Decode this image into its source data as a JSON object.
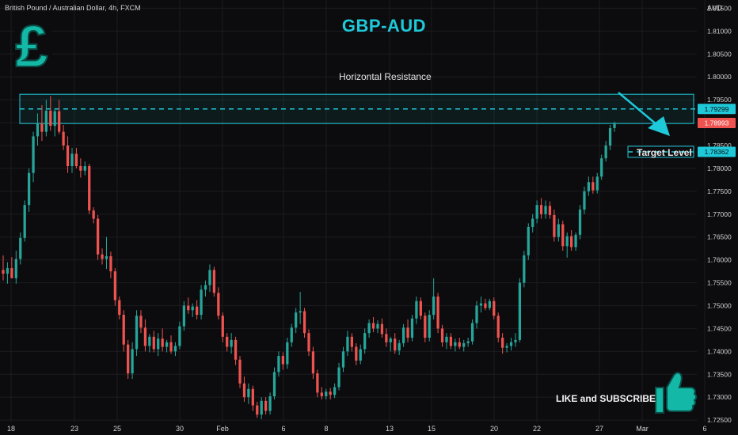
{
  "symbol": {
    "title": "British Pound / Australian Dollar, 4h, FXCM",
    "currency": "AUD"
  },
  "annotations": {
    "title": "GBP-AUD",
    "resistance_label": "Horizontal Resistance",
    "target_label": "Target Level",
    "cta": "LIKE and SUBSCRIBE",
    "logo_icon": "pound-sign-icon",
    "like_icon": "thumbs-up-icon"
  },
  "colors": {
    "background": "#0c0c0e",
    "up": "#26a69a",
    "down": "#ef5350",
    "accent": "#1ec9d9",
    "grid": "#1c1c20"
  },
  "chart_data": {
    "type": "candlestick",
    "title": "GBP-AUD",
    "x_ticks": [
      "18",
      "23",
      "25",
      "30",
      "Feb",
      "6",
      "8",
      "13",
      "15",
      "20",
      "22",
      "27",
      "Mar",
      "6"
    ],
    "y_ticks": [
      1.815,
      1.81,
      1.805,
      1.8,
      1.795,
      1.79,
      1.785,
      1.78,
      1.775,
      1.77,
      1.765,
      1.76,
      1.755,
      1.75,
      1.745,
      1.74,
      1.735,
      1.73,
      1.725
    ],
    "y_tick_labels": [
      "1.81500",
      "1.81000",
      "1.80500",
      "1.80000",
      "1.79500",
      "1.79000",
      "1.78500",
      "1.78000",
      "1.77500",
      "1.77000",
      "1.76500",
      "1.76000",
      "1.75500",
      "1.75000",
      "1.74500",
      "1.74000",
      "1.73500",
      "1.73000",
      "1.72500"
    ],
    "ylim": [
      1.7245,
      1.8168
    ],
    "grid": true,
    "price_labels": [
      {
        "name": "resistance",
        "value": 1.79299,
        "text": "1.79299"
      },
      {
        "name": "last",
        "value": 1.78993,
        "text": "1.78993"
      },
      {
        "name": "target",
        "value": 1.78362,
        "text": "1.78362"
      }
    ],
    "resistance_zone": [
      1.7898,
      1.7962
    ],
    "resistance_level": 1.79299,
    "target_level": 1.78362,
    "candles": [
      {
        "o": 1.7578,
        "h": 1.761,
        "l": 1.7555,
        "c": 1.757
      },
      {
        "o": 1.757,
        "h": 1.7595,
        "l": 1.7548,
        "c": 1.7582
      },
      {
        "o": 1.7582,
        "h": 1.7606,
        "l": 1.756,
        "c": 1.756
      },
      {
        "o": 1.756,
        "h": 1.762,
        "l": 1.7548,
        "c": 1.7602
      },
      {
        "o": 1.7602,
        "h": 1.766,
        "l": 1.759,
        "c": 1.7648
      },
      {
        "o": 1.7648,
        "h": 1.773,
        "l": 1.764,
        "c": 1.772
      },
      {
        "o": 1.772,
        "h": 1.78,
        "l": 1.7705,
        "c": 1.779
      },
      {
        "o": 1.779,
        "h": 1.788,
        "l": 1.777,
        "c": 1.787
      },
      {
        "o": 1.787,
        "h": 1.792,
        "l": 1.785,
        "c": 1.7898
      },
      {
        "o": 1.7898,
        "h": 1.7938,
        "l": 1.786,
        "c": 1.788
      },
      {
        "o": 1.788,
        "h": 1.795,
        "l": 1.787,
        "c": 1.7926
      },
      {
        "o": 1.7926,
        "h": 1.7958,
        "l": 1.7882,
        "c": 1.7893
      },
      {
        "o": 1.7893,
        "h": 1.7932,
        "l": 1.787,
        "c": 1.7925
      },
      {
        "o": 1.7925,
        "h": 1.795,
        "l": 1.7875,
        "c": 1.788
      },
      {
        "o": 1.788,
        "h": 1.7895,
        "l": 1.784,
        "c": 1.785
      },
      {
        "o": 1.785,
        "h": 1.787,
        "l": 1.779,
        "c": 1.7805
      },
      {
        "o": 1.7805,
        "h": 1.7845,
        "l": 1.779,
        "c": 1.7832
      },
      {
        "o": 1.7832,
        "h": 1.7845,
        "l": 1.78,
        "c": 1.7805
      },
      {
        "o": 1.7805,
        "h": 1.7822,
        "l": 1.778,
        "c": 1.7795
      },
      {
        "o": 1.7795,
        "h": 1.7815,
        "l": 1.7785,
        "c": 1.7805
      },
      {
        "o": 1.7805,
        "h": 1.781,
        "l": 1.77,
        "c": 1.7708
      },
      {
        "o": 1.7708,
        "h": 1.7715,
        "l": 1.768,
        "c": 1.769
      },
      {
        "o": 1.769,
        "h": 1.7698,
        "l": 1.76,
        "c": 1.7612
      },
      {
        "o": 1.7612,
        "h": 1.7625,
        "l": 1.759,
        "c": 1.7602
      },
      {
        "o": 1.7602,
        "h": 1.765,
        "l": 1.758,
        "c": 1.7608
      },
      {
        "o": 1.7608,
        "h": 1.7618,
        "l": 1.756,
        "c": 1.7575
      },
      {
        "o": 1.7575,
        "h": 1.7582,
        "l": 1.75,
        "c": 1.7512
      },
      {
        "o": 1.7512,
        "h": 1.752,
        "l": 1.747,
        "c": 1.748
      },
      {
        "o": 1.748,
        "h": 1.749,
        "l": 1.74,
        "c": 1.7415
      },
      {
        "o": 1.7415,
        "h": 1.7425,
        "l": 1.734,
        "c": 1.7352
      },
      {
        "o": 1.7352,
        "h": 1.742,
        "l": 1.734,
        "c": 1.7405
      },
      {
        "o": 1.7405,
        "h": 1.749,
        "l": 1.739,
        "c": 1.7478
      },
      {
        "o": 1.7478,
        "h": 1.749,
        "l": 1.744,
        "c": 1.7452
      },
      {
        "o": 1.7452,
        "h": 1.747,
        "l": 1.74,
        "c": 1.7412
      },
      {
        "o": 1.7412,
        "h": 1.7438,
        "l": 1.7398,
        "c": 1.7432
      },
      {
        "o": 1.7432,
        "h": 1.7445,
        "l": 1.7398,
        "c": 1.7405
      },
      {
        "o": 1.7405,
        "h": 1.744,
        "l": 1.739,
        "c": 1.7428
      },
      {
        "o": 1.7428,
        "h": 1.745,
        "l": 1.74,
        "c": 1.741
      },
      {
        "o": 1.741,
        "h": 1.7425,
        "l": 1.7398,
        "c": 1.742
      },
      {
        "o": 1.742,
        "h": 1.7435,
        "l": 1.7395,
        "c": 1.74
      },
      {
        "o": 1.74,
        "h": 1.742,
        "l": 1.739,
        "c": 1.7412
      },
      {
        "o": 1.7412,
        "h": 1.7465,
        "l": 1.7405,
        "c": 1.7455
      },
      {
        "o": 1.7455,
        "h": 1.751,
        "l": 1.7445,
        "c": 1.75
      },
      {
        "o": 1.75,
        "h": 1.7518,
        "l": 1.7482,
        "c": 1.749
      },
      {
        "o": 1.749,
        "h": 1.7505,
        "l": 1.7475,
        "c": 1.7498
      },
      {
        "o": 1.7498,
        "h": 1.7512,
        "l": 1.747,
        "c": 1.748
      },
      {
        "o": 1.748,
        "h": 1.7545,
        "l": 1.747,
        "c": 1.7535
      },
      {
        "o": 1.7535,
        "h": 1.7555,
        "l": 1.752,
        "c": 1.7545
      },
      {
        "o": 1.7545,
        "h": 1.759,
        "l": 1.753,
        "c": 1.7578
      },
      {
        "o": 1.7578,
        "h": 1.7585,
        "l": 1.752,
        "c": 1.7528
      },
      {
        "o": 1.7528,
        "h": 1.754,
        "l": 1.747,
        "c": 1.7478
      },
      {
        "o": 1.7478,
        "h": 1.7485,
        "l": 1.742,
        "c": 1.7432
      },
      {
        "o": 1.7432,
        "h": 1.744,
        "l": 1.74,
        "c": 1.741
      },
      {
        "o": 1.741,
        "h": 1.744,
        "l": 1.7395,
        "c": 1.7425
      },
      {
        "o": 1.7425,
        "h": 1.7432,
        "l": 1.737,
        "c": 1.7382
      },
      {
        "o": 1.7382,
        "h": 1.739,
        "l": 1.732,
        "c": 1.733
      },
      {
        "o": 1.733,
        "h": 1.7345,
        "l": 1.729,
        "c": 1.73
      },
      {
        "o": 1.73,
        "h": 1.733,
        "l": 1.7285,
        "c": 1.7318
      },
      {
        "o": 1.7318,
        "h": 1.7325,
        "l": 1.727,
        "c": 1.7282
      },
      {
        "o": 1.7282,
        "h": 1.729,
        "l": 1.7255,
        "c": 1.7262
      },
      {
        "o": 1.7262,
        "h": 1.73,
        "l": 1.7252,
        "c": 1.7292
      },
      {
        "o": 1.7292,
        "h": 1.73,
        "l": 1.7262,
        "c": 1.727
      },
      {
        "o": 1.727,
        "h": 1.731,
        "l": 1.7262,
        "c": 1.7302
      },
      {
        "o": 1.7302,
        "h": 1.7365,
        "l": 1.7295,
        "c": 1.7355
      },
      {
        "o": 1.7355,
        "h": 1.74,
        "l": 1.7345,
        "c": 1.739
      },
      {
        "o": 1.739,
        "h": 1.7398,
        "l": 1.736,
        "c": 1.7372
      },
      {
        "o": 1.7372,
        "h": 1.743,
        "l": 1.7362,
        "c": 1.742
      },
      {
        "o": 1.742,
        "h": 1.746,
        "l": 1.741,
        "c": 1.7452
      },
      {
        "o": 1.7452,
        "h": 1.7495,
        "l": 1.744,
        "c": 1.7485
      },
      {
        "o": 1.7485,
        "h": 1.753,
        "l": 1.746,
        "c": 1.7488
      },
      {
        "o": 1.7488,
        "h": 1.7495,
        "l": 1.743,
        "c": 1.744
      },
      {
        "o": 1.744,
        "h": 1.7448,
        "l": 1.739,
        "c": 1.74
      },
      {
        "o": 1.74,
        "h": 1.741,
        "l": 1.734,
        "c": 1.7352
      },
      {
        "o": 1.7352,
        "h": 1.736,
        "l": 1.73,
        "c": 1.731
      },
      {
        "o": 1.731,
        "h": 1.7322,
        "l": 1.7295,
        "c": 1.7302
      },
      {
        "o": 1.7302,
        "h": 1.7318,
        "l": 1.7295,
        "c": 1.7312
      },
      {
        "o": 1.7312,
        "h": 1.732,
        "l": 1.7295,
        "c": 1.7305
      },
      {
        "o": 1.7305,
        "h": 1.733,
        "l": 1.7298,
        "c": 1.7322
      },
      {
        "o": 1.7322,
        "h": 1.7375,
        "l": 1.7315,
        "c": 1.7365
      },
      {
        "o": 1.7365,
        "h": 1.741,
        "l": 1.7355,
        "c": 1.74
      },
      {
        "o": 1.74,
        "h": 1.7445,
        "l": 1.739,
        "c": 1.7432
      },
      {
        "o": 1.7432,
        "h": 1.744,
        "l": 1.74,
        "c": 1.741
      },
      {
        "o": 1.741,
        "h": 1.7418,
        "l": 1.737,
        "c": 1.738
      },
      {
        "o": 1.738,
        "h": 1.7415,
        "l": 1.7372,
        "c": 1.7405
      },
      {
        "o": 1.7405,
        "h": 1.745,
        "l": 1.7395,
        "c": 1.744
      },
      {
        "o": 1.744,
        "h": 1.747,
        "l": 1.743,
        "c": 1.7462
      },
      {
        "o": 1.7462,
        "h": 1.7475,
        "l": 1.7442,
        "c": 1.745
      },
      {
        "o": 1.745,
        "h": 1.7468,
        "l": 1.744,
        "c": 1.746
      },
      {
        "o": 1.746,
        "h": 1.7472,
        "l": 1.743,
        "c": 1.7438
      },
      {
        "o": 1.7438,
        "h": 1.745,
        "l": 1.741,
        "c": 1.742
      },
      {
        "o": 1.742,
        "h": 1.7432,
        "l": 1.74,
        "c": 1.7428
      },
      {
        "o": 1.7428,
        "h": 1.744,
        "l": 1.7395,
        "c": 1.7402
      },
      {
        "o": 1.7402,
        "h": 1.7425,
        "l": 1.7392,
        "c": 1.7418
      },
      {
        "o": 1.7418,
        "h": 1.746,
        "l": 1.741,
        "c": 1.7452
      },
      {
        "o": 1.7452,
        "h": 1.747,
        "l": 1.742,
        "c": 1.743
      },
      {
        "o": 1.743,
        "h": 1.748,
        "l": 1.7422,
        "c": 1.7472
      },
      {
        "o": 1.7472,
        "h": 1.752,
        "l": 1.746,
        "c": 1.751
      },
      {
        "o": 1.751,
        "h": 1.7518,
        "l": 1.747,
        "c": 1.7478
      },
      {
        "o": 1.7478,
        "h": 1.7485,
        "l": 1.742,
        "c": 1.743
      },
      {
        "o": 1.743,
        "h": 1.749,
        "l": 1.7422,
        "c": 1.748
      },
      {
        "o": 1.748,
        "h": 1.756,
        "l": 1.747,
        "c": 1.752
      },
      {
        "o": 1.752,
        "h": 1.7528,
        "l": 1.744,
        "c": 1.745
      },
      {
        "o": 1.745,
        "h": 1.7458,
        "l": 1.741,
        "c": 1.742
      },
      {
        "o": 1.742,
        "h": 1.744,
        "l": 1.7405,
        "c": 1.7432
      },
      {
        "o": 1.7432,
        "h": 1.744,
        "l": 1.7405,
        "c": 1.7412
      },
      {
        "o": 1.7412,
        "h": 1.7428,
        "l": 1.74,
        "c": 1.742
      },
      {
        "o": 1.742,
        "h": 1.743,
        "l": 1.7405,
        "c": 1.741
      },
      {
        "o": 1.741,
        "h": 1.7425,
        "l": 1.74,
        "c": 1.7418
      },
      {
        "o": 1.7418,
        "h": 1.743,
        "l": 1.741,
        "c": 1.7422
      },
      {
        "o": 1.7422,
        "h": 1.747,
        "l": 1.7415,
        "c": 1.7462
      },
      {
        "o": 1.7462,
        "h": 1.751,
        "l": 1.745,
        "c": 1.75
      },
      {
        "o": 1.75,
        "h": 1.752,
        "l": 1.7485,
        "c": 1.7505
      },
      {
        "o": 1.7505,
        "h": 1.7515,
        "l": 1.749,
        "c": 1.7495
      },
      {
        "o": 1.7495,
        "h": 1.7515,
        "l": 1.749,
        "c": 1.751
      },
      {
        "o": 1.751,
        "h": 1.7518,
        "l": 1.747,
        "c": 1.7478
      },
      {
        "o": 1.7478,
        "h": 1.7485,
        "l": 1.742,
        "c": 1.743
      },
      {
        "o": 1.743,
        "h": 1.744,
        "l": 1.7395,
        "c": 1.7408
      },
      {
        "o": 1.7408,
        "h": 1.7418,
        "l": 1.7398,
        "c": 1.7412
      },
      {
        "o": 1.7412,
        "h": 1.743,
        "l": 1.7402,
        "c": 1.742
      },
      {
        "o": 1.742,
        "h": 1.744,
        "l": 1.741,
        "c": 1.7425
      },
      {
        "o": 1.7425,
        "h": 1.756,
        "l": 1.742,
        "c": 1.755
      },
      {
        "o": 1.755,
        "h": 1.762,
        "l": 1.754,
        "c": 1.761
      },
      {
        "o": 1.761,
        "h": 1.768,
        "l": 1.76,
        "c": 1.7672
      },
      {
        "o": 1.7672,
        "h": 1.77,
        "l": 1.766,
        "c": 1.769
      },
      {
        "o": 1.769,
        "h": 1.773,
        "l": 1.768,
        "c": 1.772
      },
      {
        "o": 1.772,
        "h": 1.7735,
        "l": 1.769,
        "c": 1.77
      },
      {
        "o": 1.77,
        "h": 1.773,
        "l": 1.769,
        "c": 1.7718
      },
      {
        "o": 1.7718,
        "h": 1.7728,
        "l": 1.769,
        "c": 1.7698
      },
      {
        "o": 1.7698,
        "h": 1.771,
        "l": 1.764,
        "c": 1.765
      },
      {
        "o": 1.765,
        "h": 1.769,
        "l": 1.764,
        "c": 1.7678
      },
      {
        "o": 1.7678,
        "h": 1.7686,
        "l": 1.762,
        "c": 1.763
      },
      {
        "o": 1.763,
        "h": 1.766,
        "l": 1.7605,
        "c": 1.7652
      },
      {
        "o": 1.7652,
        "h": 1.7665,
        "l": 1.762,
        "c": 1.7628
      },
      {
        "o": 1.7628,
        "h": 1.766,
        "l": 1.762,
        "c": 1.7655
      },
      {
        "o": 1.7655,
        "h": 1.772,
        "l": 1.7645,
        "c": 1.771
      },
      {
        "o": 1.771,
        "h": 1.776,
        "l": 1.77,
        "c": 1.775
      },
      {
        "o": 1.775,
        "h": 1.7782,
        "l": 1.774,
        "c": 1.777
      },
      {
        "o": 1.777,
        "h": 1.7782,
        "l": 1.7745,
        "c": 1.7752
      },
      {
        "o": 1.7752,
        "h": 1.779,
        "l": 1.7745,
        "c": 1.7782
      },
      {
        "o": 1.7782,
        "h": 1.783,
        "l": 1.7775,
        "c": 1.7822
      },
      {
        "o": 1.7822,
        "h": 1.786,
        "l": 1.7815,
        "c": 1.785
      },
      {
        "o": 1.785,
        "h": 1.7895,
        "l": 1.784,
        "c": 1.7888
      },
      {
        "o": 1.7888,
        "h": 1.7902,
        "l": 1.788,
        "c": 1.7899
      }
    ]
  }
}
